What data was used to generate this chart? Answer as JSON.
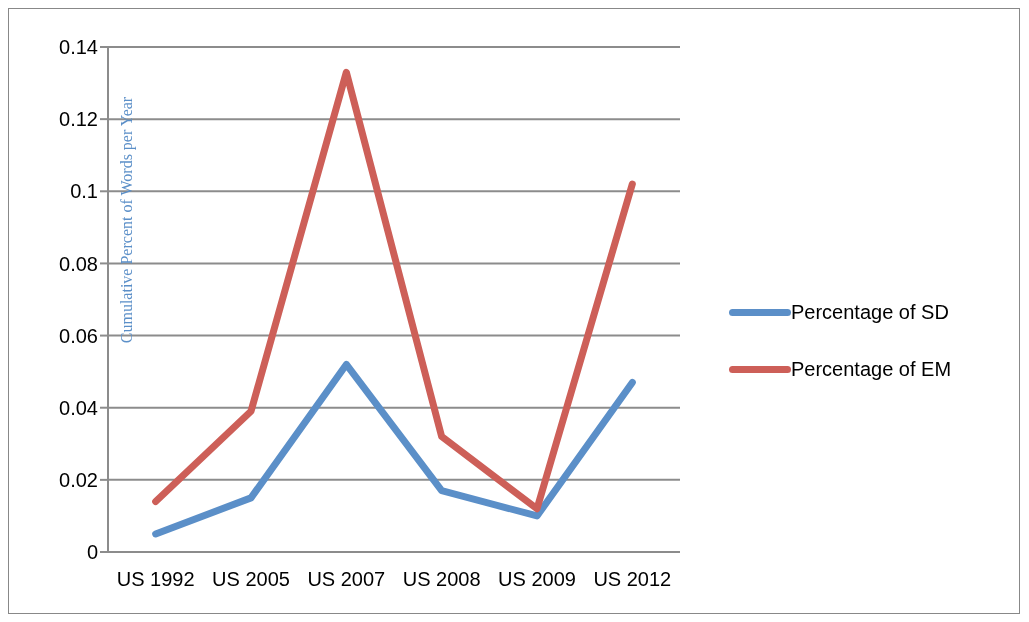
{
  "chart_data": {
    "type": "line",
    "ylabel": "Cumulative Percent of Words per Year",
    "categories": [
      "US 1992",
      "US 2005",
      "US 2007",
      "US 2008",
      "US 2009",
      "US 2012"
    ],
    "series": [
      {
        "name": "Percentage of SD",
        "color": "#5b8fc8",
        "values": [
          0.005,
          0.015,
          0.052,
          0.017,
          0.01,
          0.047
        ]
      },
      {
        "name": "Percentage of EM",
        "color": "#cd5f58",
        "values": [
          0.014,
          0.039,
          0.133,
          0.032,
          0.012,
          0.102
        ]
      }
    ],
    "ylim": [
      0,
      0.14
    ],
    "yticks": [
      0,
      0.02,
      0.04,
      0.06,
      0.08,
      0.1,
      0.12,
      0.14
    ],
    "grid": "y",
    "legend": "right",
    "marker": "none",
    "line_style": "solid"
  }
}
